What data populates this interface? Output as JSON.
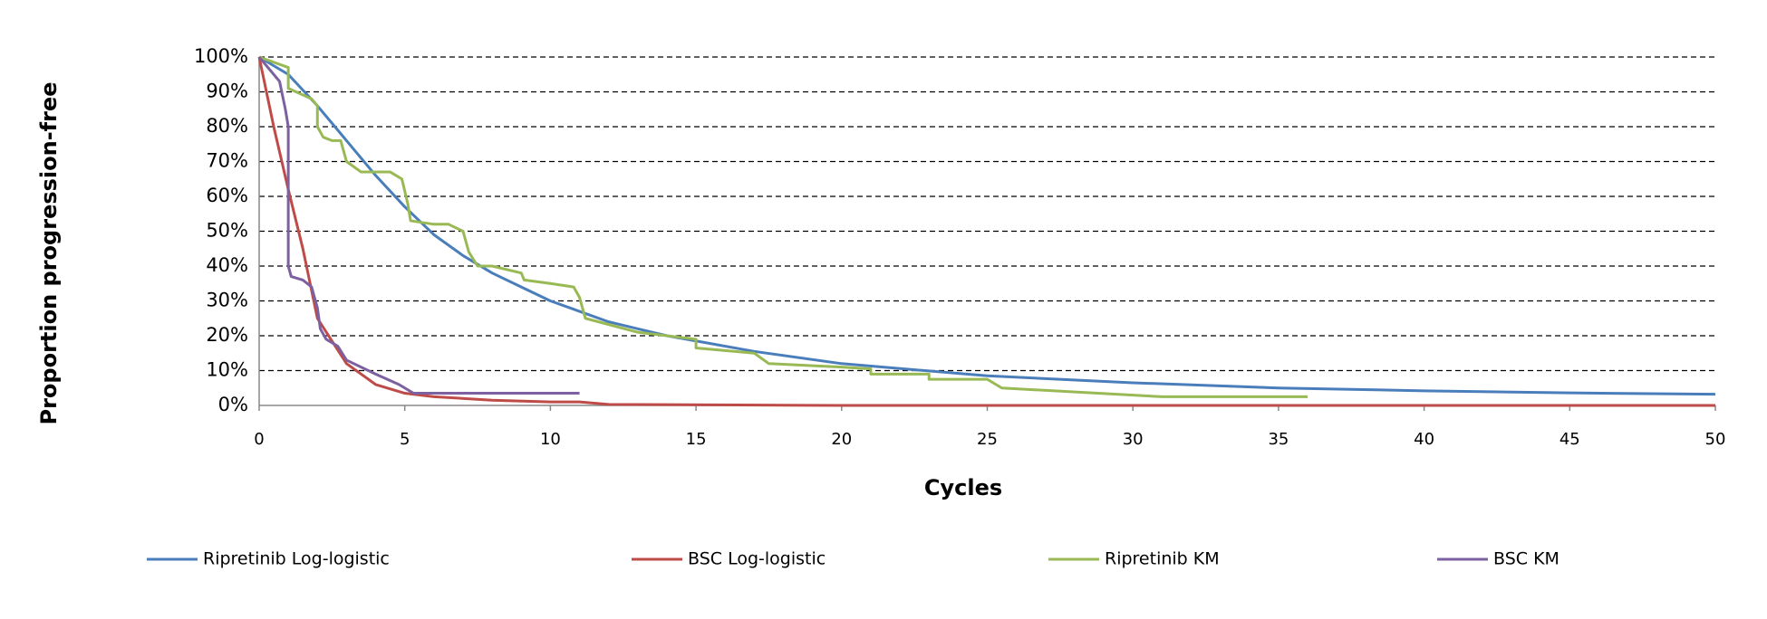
{
  "chart_data": {
    "type": "line",
    "y_label": "Proportion progression-free",
    "x_label": "Cycles",
    "xlim": [
      0,
      50
    ],
    "xticks": [
      0,
      5,
      10,
      15,
      20,
      25,
      30,
      35,
      40,
      45,
      50
    ],
    "ylim": [
      0,
      100
    ],
    "yticks": [
      {
        "value": 0,
        "label": "0%"
      },
      {
        "value": 10,
        "label": "10%"
      },
      {
        "value": 20,
        "label": "20%"
      },
      {
        "value": 30,
        "label": "30%"
      },
      {
        "value": 40,
        "label": "40%"
      },
      {
        "value": 50,
        "label": "50%"
      },
      {
        "value": 60,
        "label": "60%"
      },
      {
        "value": 70,
        "label": "70%"
      },
      {
        "value": 80,
        "label": "80%"
      },
      {
        "value": 90,
        "label": "90%"
      },
      {
        "value": 100,
        "label": "100%"
      }
    ],
    "grid": true,
    "legend": "bottom",
    "series": [
      {
        "name": "Ripretinib Log-logistic",
        "color": "#4a7ebb",
        "x": [
          0,
          1,
          2,
          3,
          4,
          5,
          6,
          7,
          8,
          9,
          10,
          11,
          12,
          13,
          14,
          15,
          17,
          20,
          25,
          30,
          35,
          40,
          45,
          50
        ],
        "values": [
          100,
          95,
          86,
          76,
          66,
          57,
          49,
          43,
          38,
          34,
          30,
          27,
          24,
          22,
          20,
          18.5,
          15.5,
          12,
          8.5,
          6.5,
          5,
          4.2,
          3.6,
          3.2
        ]
      },
      {
        "name": "BSC Log-logistic",
        "color": "#be4b48",
        "x": [
          0,
          0.5,
          1,
          1.5,
          2,
          3,
          4,
          5,
          6,
          8,
          10,
          11,
          12,
          20,
          50
        ],
        "values": [
          100,
          80,
          62,
          45,
          25,
          12,
          6,
          3.5,
          2.5,
          1.5,
          1,
          1,
          0.3,
          0,
          0
        ]
      },
      {
        "name": "Ripretinib KM",
        "color": "#98b954",
        "x": [
          0,
          1,
          1,
          1.8,
          2,
          2,
          2.2,
          2.5,
          2.8,
          3,
          3.5,
          4.5,
          4.9,
          5.1,
          5.2,
          6,
          6.5,
          7,
          7.2,
          7.5,
          8,
          9,
          9.1,
          10,
          10.8,
          11,
          11.2,
          13,
          14,
          15,
          15,
          17,
          17.5,
          20,
          21,
          21,
          23,
          23,
          25,
          25.5,
          31,
          36
        ],
        "values": [
          100,
          97,
          91,
          88,
          86,
          80,
          77,
          76,
          76,
          70,
          67,
          67,
          65,
          58,
          53,
          52,
          52,
          50,
          44,
          40,
          40,
          38,
          36,
          35,
          34,
          31,
          25,
          21,
          20,
          19,
          16.5,
          15,
          12,
          11,
          10.5,
          9,
          9,
          7.5,
          7.5,
          5,
          2.5,
          2.5
        ]
      },
      {
        "name": "BSC KM",
        "color": "#7d60a0",
        "x": [
          0,
          0.7,
          0.9,
          1,
          1,
          1.1,
          1.5,
          1.8,
          2,
          2.1,
          2.3,
          2.7,
          3,
          4,
          4.8,
          5.3,
          11
        ],
        "values": [
          100,
          93,
          85,
          80,
          40,
          37,
          36,
          34,
          28,
          22,
          19,
          17,
          13,
          9,
          6,
          3.5,
          3.5
        ]
      }
    ]
  }
}
